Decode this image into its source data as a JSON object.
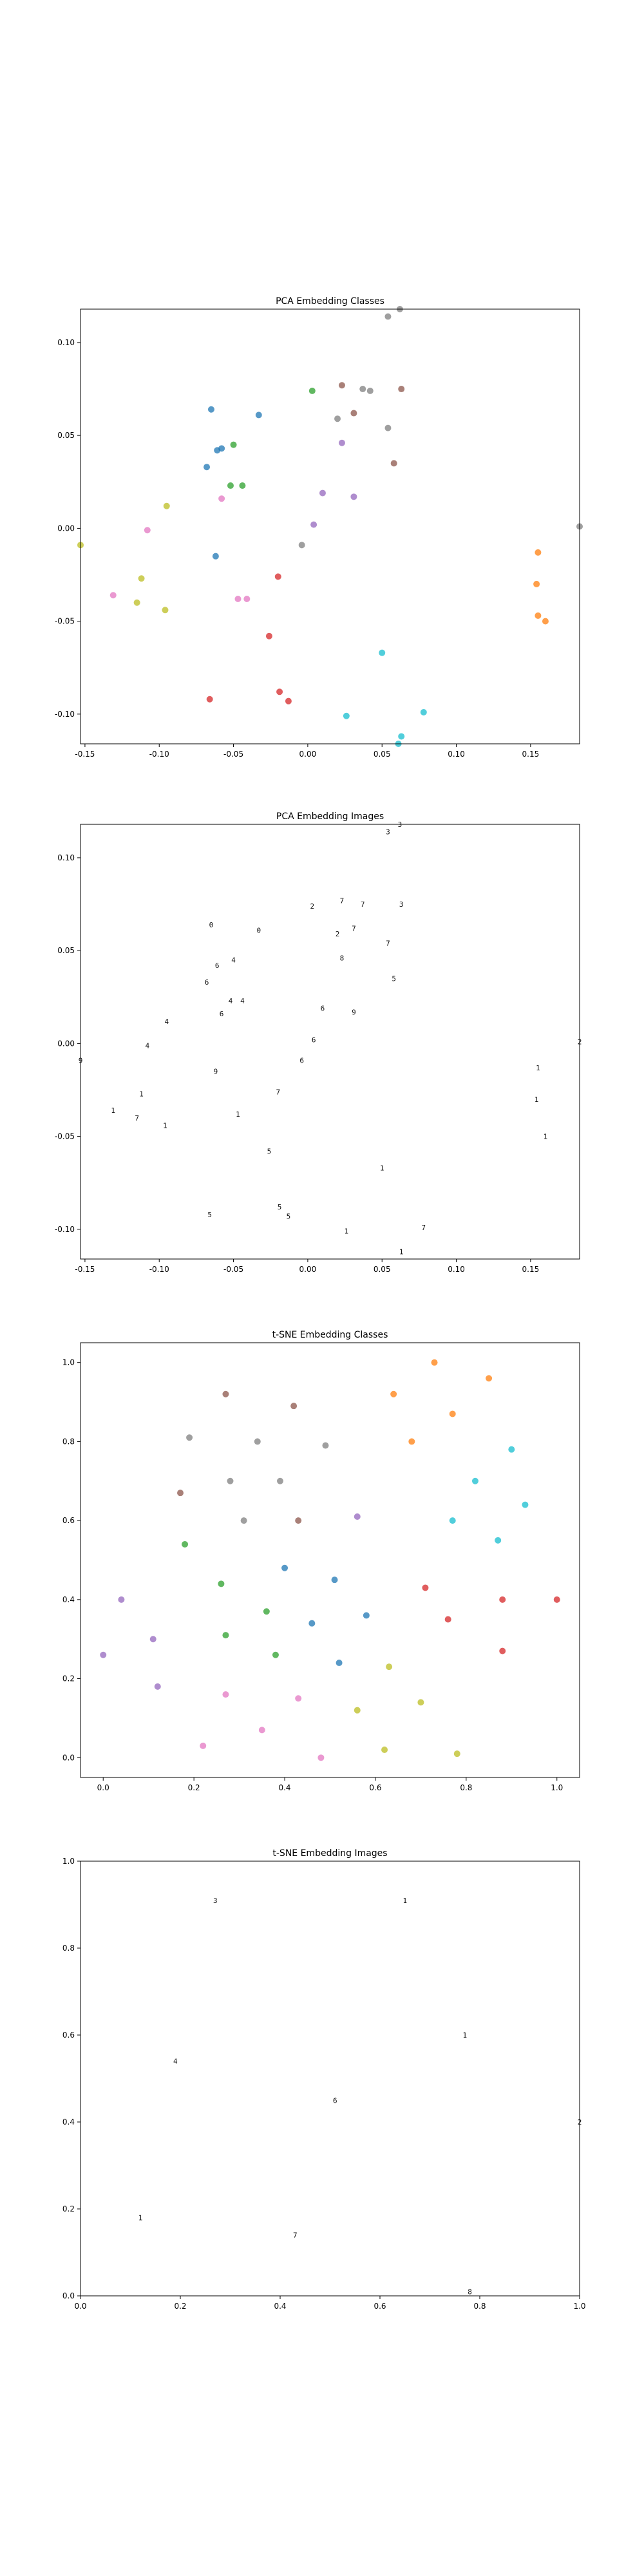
{
  "chart_data": [
    {
      "type": "scatter",
      "title": "PCA Embedding Classes",
      "xlim": [
        -0.153,
        0.183
      ],
      "ylim": [
        -0.116,
        0.118
      ],
      "xticks": [
        "-0.15",
        "-0.10",
        "-0.05",
        "0.00",
        "0.05",
        "0.10",
        "0.15"
      ],
      "xtick_values": [
        -0.15,
        -0.1,
        -0.05,
        0.0,
        0.05,
        0.1,
        0.15
      ],
      "yticks": [
        "-0.10",
        "-0.05",
        "0.00",
        "0.05",
        "0.10"
      ],
      "ytick_values": [
        -0.1,
        -0.05,
        0.0,
        0.05,
        0.1
      ],
      "points": [
        {
          "x": 0.054,
          "y": 0.114,
          "c": "#7f7f7f"
        },
        {
          "x": 0.062,
          "y": 0.118,
          "c": "#7f7f7f"
        },
        {
          "x": -0.065,
          "y": 0.064,
          "c": "#1f77b4"
        },
        {
          "x": -0.033,
          "y": 0.061,
          "c": "#1f77b4"
        },
        {
          "x": 0.003,
          "y": 0.074,
          "c": "#2ca02c"
        },
        {
          "x": 0.023,
          "y": 0.077,
          "c": "#8c564b"
        },
        {
          "x": 0.037,
          "y": 0.075,
          "c": "#7f7f7f"
        },
        {
          "x": 0.042,
          "y": 0.074,
          "c": "#7f7f7f"
        },
        {
          "x": 0.063,
          "y": 0.075,
          "c": "#8c564b"
        },
        {
          "x": -0.061,
          "y": 0.042,
          "c": "#1f77b4"
        },
        {
          "x": -0.058,
          "y": 0.043,
          "c": "#1f77b4"
        },
        {
          "x": -0.05,
          "y": 0.045,
          "c": "#2ca02c"
        },
        {
          "x": -0.068,
          "y": 0.033,
          "c": "#1f77b4"
        },
        {
          "x": 0.02,
          "y": 0.059,
          "c": "#7f7f7f"
        },
        {
          "x": 0.031,
          "y": 0.062,
          "c": "#8c564b"
        },
        {
          "x": 0.054,
          "y": 0.054,
          "c": "#7f7f7f"
        },
        {
          "x": 0.023,
          "y": 0.046,
          "c": "#9467bd"
        },
        {
          "x": 0.058,
          "y": 0.035,
          "c": "#8c564b"
        },
        {
          "x": -0.052,
          "y": 0.023,
          "c": "#2ca02c"
        },
        {
          "x": -0.044,
          "y": 0.023,
          "c": "#2ca02c"
        },
        {
          "x": -0.058,
          "y": 0.016,
          "c": "#e377c2"
        },
        {
          "x": 0.01,
          "y": 0.019,
          "c": "#9467bd"
        },
        {
          "x": 0.031,
          "y": 0.017,
          "c": "#9467bd"
        },
        {
          "x": -0.095,
          "y": 0.012,
          "c": "#bcbd22"
        },
        {
          "x": 0.004,
          "y": 0.002,
          "c": "#9467bd"
        },
        {
          "x": -0.108,
          "y": -0.001,
          "c": "#e377c2"
        },
        {
          "x": -0.004,
          "y": -0.009,
          "c": "#7f7f7f"
        },
        {
          "x": -0.062,
          "y": -0.015,
          "c": "#1f77b4"
        },
        {
          "x": 0.183,
          "y": 0.001,
          "c": "#7f7f7f"
        },
        {
          "x": 0.155,
          "y": -0.013,
          "c": "#ff7f0e"
        },
        {
          "x": -0.112,
          "y": -0.027,
          "c": "#bcbd22"
        },
        {
          "x": -0.02,
          "y": -0.026,
          "c": "#d62728"
        },
        {
          "x": 0.154,
          "y": -0.03,
          "c": "#ff7f0e"
        },
        {
          "x": -0.131,
          "y": -0.036,
          "c": "#e377c2"
        },
        {
          "x": -0.115,
          "y": -0.04,
          "c": "#bcbd22"
        },
        {
          "x": -0.047,
          "y": -0.038,
          "c": "#e377c2"
        },
        {
          "x": -0.041,
          "y": -0.038,
          "c": "#e377c2"
        },
        {
          "x": -0.096,
          "y": -0.044,
          "c": "#bcbd22"
        },
        {
          "x": 0.155,
          "y": -0.047,
          "c": "#ff7f0e"
        },
        {
          "x": 0.16,
          "y": -0.05,
          "c": "#ff7f0e"
        },
        {
          "x": -0.026,
          "y": -0.058,
          "c": "#d62728"
        },
        {
          "x": 0.05,
          "y": -0.067,
          "c": "#17becf"
        },
        {
          "x": -0.019,
          "y": -0.088,
          "c": "#d62728"
        },
        {
          "x": -0.066,
          "y": -0.092,
          "c": "#d62728"
        },
        {
          "x": -0.013,
          "y": -0.093,
          "c": "#d62728"
        },
        {
          "x": 0.078,
          "y": -0.099,
          "c": "#17becf"
        },
        {
          "x": 0.026,
          "y": -0.101,
          "c": "#17becf"
        },
        {
          "x": 0.063,
          "y": -0.112,
          "c": "#17becf"
        },
        {
          "x": 0.061,
          "y": -0.116,
          "c": "#17becf"
        },
        {
          "x": -0.153,
          "y": -0.009,
          "c": "#bcbd22"
        }
      ]
    },
    {
      "type": "scatter",
      "title": "PCA Embedding Images",
      "xlim": [
        -0.153,
        0.183
      ],
      "ylim": [
        -0.116,
        0.118
      ],
      "xticks": [
        "-0.15",
        "-0.10",
        "-0.05",
        "0.00",
        "0.05",
        "0.10",
        "0.15"
      ],
      "xtick_values": [
        -0.15,
        -0.1,
        -0.05,
        0.0,
        0.05,
        0.1,
        0.15
      ],
      "yticks": [
        "-0.10",
        "-0.05",
        "0.00",
        "0.05",
        "0.10"
      ],
      "ytick_values": [
        -0.1,
        -0.05,
        0.0,
        0.05,
        0.1
      ],
      "points": [
        {
          "x": 0.054,
          "y": 0.114,
          "g": "3"
        },
        {
          "x": 0.062,
          "y": 0.118,
          "g": "3"
        },
        {
          "x": -0.065,
          "y": 0.064,
          "g": "0"
        },
        {
          "x": -0.033,
          "y": 0.061,
          "g": "0"
        },
        {
          "x": 0.003,
          "y": 0.074,
          "g": "2"
        },
        {
          "x": 0.023,
          "y": 0.077,
          "g": "7"
        },
        {
          "x": 0.037,
          "y": 0.075,
          "g": "7"
        },
        {
          "x": 0.063,
          "y": 0.075,
          "g": "3"
        },
        {
          "x": -0.061,
          "y": 0.042,
          "g": "6"
        },
        {
          "x": -0.05,
          "y": 0.045,
          "g": "4"
        },
        {
          "x": -0.068,
          "y": 0.033,
          "g": "6"
        },
        {
          "x": 0.02,
          "y": 0.059,
          "g": "2"
        },
        {
          "x": 0.031,
          "y": 0.062,
          "g": "7"
        },
        {
          "x": 0.054,
          "y": 0.054,
          "g": "7"
        },
        {
          "x": 0.023,
          "y": 0.046,
          "g": "8"
        },
        {
          "x": 0.058,
          "y": 0.035,
          "g": "5"
        },
        {
          "x": -0.052,
          "y": 0.023,
          "g": "4"
        },
        {
          "x": -0.044,
          "y": 0.023,
          "g": "4"
        },
        {
          "x": -0.058,
          "y": 0.016,
          "g": "6"
        },
        {
          "x": 0.01,
          "y": 0.019,
          "g": "6"
        },
        {
          "x": 0.031,
          "y": 0.017,
          "g": "9"
        },
        {
          "x": -0.095,
          "y": 0.012,
          "g": "4"
        },
        {
          "x": 0.004,
          "y": 0.002,
          "g": "6"
        },
        {
          "x": -0.108,
          "y": -0.001,
          "g": "4"
        },
        {
          "x": -0.004,
          "y": -0.009,
          "g": "6"
        },
        {
          "x": -0.062,
          "y": -0.015,
          "g": "9"
        },
        {
          "x": 0.183,
          "y": 0.001,
          "g": "2"
        },
        {
          "x": 0.155,
          "y": -0.013,
          "g": "1"
        },
        {
          "x": -0.112,
          "y": -0.027,
          "g": "1"
        },
        {
          "x": -0.02,
          "y": -0.026,
          "g": "7"
        },
        {
          "x": 0.154,
          "y": -0.03,
          "g": "1"
        },
        {
          "x": -0.131,
          "y": -0.036,
          "g": "1"
        },
        {
          "x": -0.115,
          "y": -0.04,
          "g": "7"
        },
        {
          "x": -0.047,
          "y": -0.038,
          "g": "1"
        },
        {
          "x": -0.096,
          "y": -0.044,
          "g": "1"
        },
        {
          "x": 0.16,
          "y": -0.05,
          "g": "1"
        },
        {
          "x": -0.026,
          "y": -0.058,
          "g": "5"
        },
        {
          "x": 0.05,
          "y": -0.067,
          "g": "1"
        },
        {
          "x": -0.019,
          "y": -0.088,
          "g": "5"
        },
        {
          "x": -0.066,
          "y": -0.092,
          "g": "5"
        },
        {
          "x": -0.013,
          "y": -0.093,
          "g": "5"
        },
        {
          "x": 0.078,
          "y": -0.099,
          "g": "7"
        },
        {
          "x": 0.026,
          "y": -0.101,
          "g": "1"
        },
        {
          "x": 0.063,
          "y": -0.112,
          "g": "1"
        },
        {
          "x": -0.153,
          "y": -0.009,
          "g": "9"
        }
      ]
    },
    {
      "type": "scatter",
      "title": "t-SNE Embedding Classes",
      "xlim": [
        -0.05,
        1.05
      ],
      "ylim": [
        -0.05,
        1.05
      ],
      "xticks": [
        "0.0",
        "0.2",
        "0.4",
        "0.6",
        "0.8",
        "1.0"
      ],
      "xtick_values": [
        0.0,
        0.2,
        0.4,
        0.6,
        0.8,
        1.0
      ],
      "yticks": [
        "0.0",
        "0.2",
        "0.4",
        "0.6",
        "0.8",
        "1.0"
      ],
      "ytick_values": [
        0.0,
        0.2,
        0.4,
        0.6,
        0.8,
        1.0
      ],
      "points": [
        {
          "x": 0.73,
          "y": 1.0,
          "c": "#ff7f0e"
        },
        {
          "x": 0.27,
          "y": 0.92,
          "c": "#8c564b"
        },
        {
          "x": 0.42,
          "y": 0.89,
          "c": "#8c564b"
        },
        {
          "x": 0.64,
          "y": 0.92,
          "c": "#ff7f0e"
        },
        {
          "x": 0.85,
          "y": 0.96,
          "c": "#ff7f0e"
        },
        {
          "x": 0.77,
          "y": 0.87,
          "c": "#ff7f0e"
        },
        {
          "x": 0.19,
          "y": 0.81,
          "c": "#7f7f7f"
        },
        {
          "x": 0.34,
          "y": 0.8,
          "c": "#7f7f7f"
        },
        {
          "x": 0.49,
          "y": 0.79,
          "c": "#7f7f7f"
        },
        {
          "x": 0.68,
          "y": 0.8,
          "c": "#ff7f0e"
        },
        {
          "x": 0.9,
          "y": 0.78,
          "c": "#17becf"
        },
        {
          "x": 0.28,
          "y": 0.7,
          "c": "#7f7f7f"
        },
        {
          "x": 0.39,
          "y": 0.7,
          "c": "#7f7f7f"
        },
        {
          "x": 0.82,
          "y": 0.7,
          "c": "#17becf"
        },
        {
          "x": 0.17,
          "y": 0.67,
          "c": "#8c564b"
        },
        {
          "x": 0.93,
          "y": 0.64,
          "c": "#17becf"
        },
        {
          "x": 0.31,
          "y": 0.6,
          "c": "#7f7f7f"
        },
        {
          "x": 0.43,
          "y": 0.6,
          "c": "#8c564b"
        },
        {
          "x": 0.56,
          "y": 0.61,
          "c": "#9467bd"
        },
        {
          "x": 0.77,
          "y": 0.6,
          "c": "#17becf"
        },
        {
          "x": 0.18,
          "y": 0.54,
          "c": "#2ca02c"
        },
        {
          "x": 0.87,
          "y": 0.55,
          "c": "#17becf"
        },
        {
          "x": 0.4,
          "y": 0.48,
          "c": "#1f77b4"
        },
        {
          "x": 0.26,
          "y": 0.44,
          "c": "#2ca02c"
        },
        {
          "x": 0.51,
          "y": 0.45,
          "c": "#1f77b4"
        },
        {
          "x": 0.71,
          "y": 0.43,
          "c": "#d62728"
        },
        {
          "x": 0.04,
          "y": 0.4,
          "c": "#9467bd"
        },
        {
          "x": 0.88,
          "y": 0.4,
          "c": "#d62728"
        },
        {
          "x": 1.0,
          "y": 0.4,
          "c": "#d62728"
        },
        {
          "x": 0.36,
          "y": 0.37,
          "c": "#2ca02c"
        },
        {
          "x": 0.58,
          "y": 0.36,
          "c": "#1f77b4"
        },
        {
          "x": 0.46,
          "y": 0.34,
          "c": "#1f77b4"
        },
        {
          "x": 0.76,
          "y": 0.35,
          "c": "#d62728"
        },
        {
          "x": 0.11,
          "y": 0.3,
          "c": "#9467bd"
        },
        {
          "x": 0.27,
          "y": 0.31,
          "c": "#2ca02c"
        },
        {
          "x": 0.0,
          "y": 0.26,
          "c": "#9467bd"
        },
        {
          "x": 0.38,
          "y": 0.26,
          "c": "#2ca02c"
        },
        {
          "x": 0.88,
          "y": 0.27,
          "c": "#d62728"
        },
        {
          "x": 0.52,
          "y": 0.24,
          "c": "#1f77b4"
        },
        {
          "x": 0.63,
          "y": 0.23,
          "c": "#bcbd22"
        },
        {
          "x": 0.12,
          "y": 0.18,
          "c": "#9467bd"
        },
        {
          "x": 0.27,
          "y": 0.16,
          "c": "#e377c2"
        },
        {
          "x": 0.43,
          "y": 0.15,
          "c": "#e377c2"
        },
        {
          "x": 0.7,
          "y": 0.14,
          "c": "#bcbd22"
        },
        {
          "x": 0.56,
          "y": 0.12,
          "c": "#bcbd22"
        },
        {
          "x": 0.35,
          "y": 0.07,
          "c": "#e377c2"
        },
        {
          "x": 0.22,
          "y": 0.03,
          "c": "#e377c2"
        },
        {
          "x": 0.62,
          "y": 0.02,
          "c": "#bcbd22"
        },
        {
          "x": 0.48,
          "y": 0.0,
          "c": "#e377c2"
        },
        {
          "x": 0.78,
          "y": 0.01,
          "c": "#bcbd22"
        }
      ]
    },
    {
      "type": "scatter",
      "title": "t-SNE Embedding Images",
      "xlim": [
        0.0,
        1.0
      ],
      "ylim": [
        0.0,
        1.0
      ],
      "xticks": [
        "0.0",
        "0.2",
        "0.4",
        "0.6",
        "0.8",
        "1.0"
      ],
      "xtick_values": [
        0.0,
        0.2,
        0.4,
        0.6,
        0.8,
        1.0
      ],
      "yticks": [
        "0.0",
        "0.2",
        "0.4",
        "0.6",
        "0.8",
        "1.0"
      ],
      "ytick_values": [
        0.0,
        0.2,
        0.4,
        0.6,
        0.8,
        1.0
      ],
      "points": [
        {
          "x": 0.27,
          "y": 0.91,
          "g": "3"
        },
        {
          "x": 0.65,
          "y": 0.91,
          "g": "1"
        },
        {
          "x": 0.77,
          "y": 0.6,
          "g": "1"
        },
        {
          "x": 0.19,
          "y": 0.54,
          "g": "4"
        },
        {
          "x": 0.51,
          "y": 0.45,
          "g": "6"
        },
        {
          "x": 1.0,
          "y": 0.4,
          "g": "2"
        },
        {
          "x": 0.12,
          "y": 0.18,
          "g": "1"
        },
        {
          "x": 0.43,
          "y": 0.14,
          "g": "7"
        },
        {
          "x": 0.78,
          "y": 0.01,
          "g": "8"
        }
      ]
    }
  ]
}
